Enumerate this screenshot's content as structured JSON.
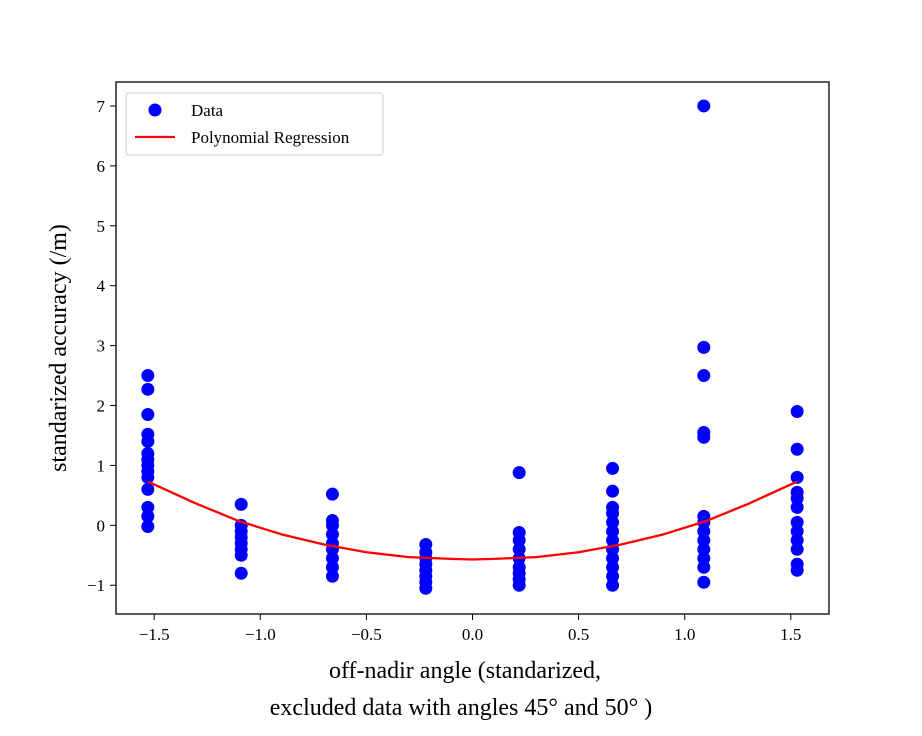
{
  "chart_data": {
    "type": "scatter",
    "xlabel_lines": [
      "off-nadir angle (standarized,",
      "excluded data with angles 45° and 50° )"
    ],
    "ylabel": "standarized accuracy (/m)",
    "xlim": [
      -1.68,
      1.68
    ],
    "ylim": [
      -1.48,
      7.4
    ],
    "xticks": [
      -1.5,
      -1.0,
      -0.5,
      0.0,
      0.5,
      1.0,
      1.5
    ],
    "xtick_labels": [
      "−1.5",
      "−1.0",
      "−0.5",
      "0.0",
      "0.5",
      "1.0",
      "1.5"
    ],
    "yticks": [
      -1,
      0,
      1,
      2,
      3,
      4,
      5,
      6,
      7
    ],
    "ytick_labels": [
      "−1",
      "0",
      "1",
      "2",
      "3",
      "4",
      "5",
      "6",
      "7"
    ],
    "grid": false,
    "legend_position": "top-left",
    "series": [
      {
        "name": "Data",
        "kind": "scatter",
        "color": "#0000ff",
        "points": [
          [
            -1.53,
            2.5
          ],
          [
            -1.53,
            2.27
          ],
          [
            -1.53,
            1.85
          ],
          [
            -1.53,
            1.52
          ],
          [
            -1.53,
            1.4
          ],
          [
            -1.53,
            1.2
          ],
          [
            -1.53,
            1.1
          ],
          [
            -1.53,
            1.0
          ],
          [
            -1.53,
            0.9
          ],
          [
            -1.53,
            0.8
          ],
          [
            -1.53,
            0.6
          ],
          [
            -1.53,
            0.3
          ],
          [
            -1.53,
            0.15
          ],
          [
            -1.53,
            -0.02
          ],
          [
            -1.09,
            0.35
          ],
          [
            -1.09,
            0.0
          ],
          [
            -1.09,
            -0.1
          ],
          [
            -1.09,
            -0.2
          ],
          [
            -1.09,
            -0.3
          ],
          [
            -1.09,
            -0.4
          ],
          [
            -1.09,
            -0.5
          ],
          [
            -1.09,
            -0.8
          ],
          [
            -0.66,
            0.52
          ],
          [
            -0.66,
            0.08
          ],
          [
            -0.66,
            0.0
          ],
          [
            -0.66,
            -0.15
          ],
          [
            -0.66,
            -0.3
          ],
          [
            -0.66,
            -0.4
          ],
          [
            -0.66,
            -0.55
          ],
          [
            -0.66,
            -0.7
          ],
          [
            -0.66,
            -0.85
          ],
          [
            -0.22,
            -0.32
          ],
          [
            -0.22,
            -0.45
          ],
          [
            -0.22,
            -0.55
          ],
          [
            -0.22,
            -0.65
          ],
          [
            -0.22,
            -0.75
          ],
          [
            -0.22,
            -0.85
          ],
          [
            -0.22,
            -0.95
          ],
          [
            -0.22,
            -1.05
          ],
          [
            0.22,
            0.88
          ],
          [
            0.22,
            -0.12
          ],
          [
            0.22,
            -0.25
          ],
          [
            0.22,
            -0.4
          ],
          [
            0.22,
            -0.55
          ],
          [
            0.22,
            -0.7
          ],
          [
            0.22,
            -0.8
          ],
          [
            0.22,
            -0.9
          ],
          [
            0.22,
            -1.0
          ],
          [
            0.66,
            0.95
          ],
          [
            0.66,
            0.57
          ],
          [
            0.66,
            0.3
          ],
          [
            0.66,
            0.2
          ],
          [
            0.66,
            0.05
          ],
          [
            0.66,
            -0.1
          ],
          [
            0.66,
            -0.25
          ],
          [
            0.66,
            -0.4
          ],
          [
            0.66,
            -0.55
          ],
          [
            0.66,
            -0.7
          ],
          [
            0.66,
            -0.85
          ],
          [
            0.66,
            -1.0
          ],
          [
            1.09,
            7.0
          ],
          [
            1.09,
            2.97
          ],
          [
            1.09,
            2.5
          ],
          [
            1.09,
            1.55
          ],
          [
            1.09,
            1.47
          ],
          [
            1.09,
            0.15
          ],
          [
            1.09,
            0.05
          ],
          [
            1.09,
            -0.1
          ],
          [
            1.09,
            -0.25
          ],
          [
            1.09,
            -0.4
          ],
          [
            1.09,
            -0.55
          ],
          [
            1.09,
            -0.7
          ],
          [
            1.09,
            -0.95
          ],
          [
            1.53,
            1.9
          ],
          [
            1.53,
            1.27
          ],
          [
            1.53,
            0.8
          ],
          [
            1.53,
            0.55
          ],
          [
            1.53,
            0.45
          ],
          [
            1.53,
            0.3
          ],
          [
            1.53,
            0.05
          ],
          [
            1.53,
            -0.1
          ],
          [
            1.53,
            -0.25
          ],
          [
            1.53,
            -0.4
          ],
          [
            1.53,
            -0.65
          ],
          [
            1.53,
            -0.75
          ]
        ]
      },
      {
        "name": "Polynomial Regression",
        "kind": "line",
        "color": "#ff0000",
        "x": [
          -1.53,
          -1.3,
          -1.1,
          -0.9,
          -0.7,
          -0.5,
          -0.3,
          -0.1,
          0.0,
          0.1,
          0.3,
          0.5,
          0.7,
          0.9,
          1.1,
          1.3,
          1.53
        ],
        "y": [
          0.73,
          0.36,
          0.07,
          -0.15,
          -0.32,
          -0.45,
          -0.53,
          -0.56,
          -0.57,
          -0.56,
          -0.53,
          -0.45,
          -0.32,
          -0.15,
          0.07,
          0.36,
          0.73
        ]
      }
    ]
  }
}
